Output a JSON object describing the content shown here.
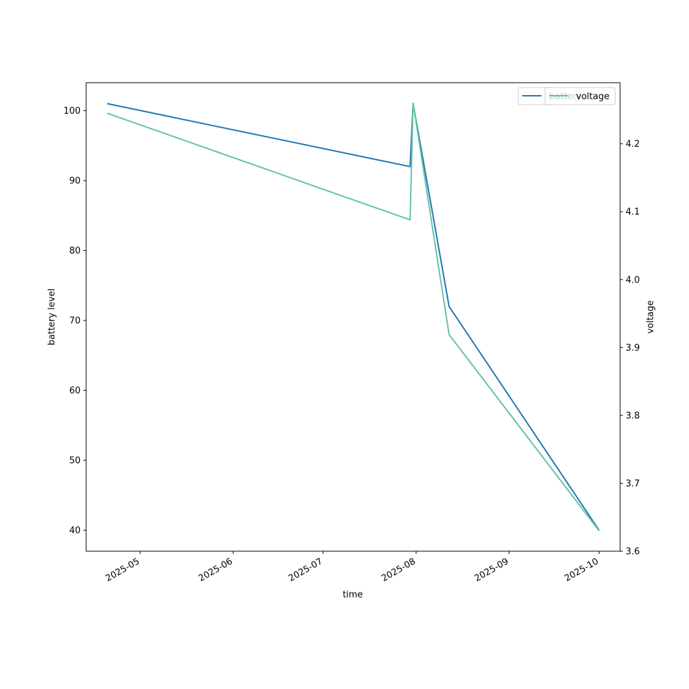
{
  "chart_data": {
    "type": "line",
    "title": "",
    "xlabel": "time",
    "ylabel": "battery level",
    "y2label": "voltage",
    "x_ticks": [
      "2025-05",
      "2025-06",
      "2025-07",
      "2025-08",
      "2025-09",
      "2025-10"
    ],
    "xlim": [
      "2025-04-13",
      "2025-10-08"
    ],
    "ylim": [
      37,
      104
    ],
    "y_ticks": [
      40,
      50,
      60,
      70,
      80,
      90,
      100
    ],
    "y2lim": [
      3.6,
      4.29
    ],
    "y2_ticks": [
      "3.6",
      "3.7",
      "3.8",
      "3.9",
      "4.0",
      "4.1",
      "4.2"
    ],
    "grid": false,
    "legend_position": "top-right",
    "series": [
      {
        "name": "battery",
        "axis": "left",
        "color": "#1f77b4",
        "points": [
          {
            "x": "2025-04-20",
            "y": 101
          },
          {
            "x": "2025-07-30",
            "y": 92
          },
          {
            "x": "2025-07-31",
            "y": 101
          },
          {
            "x": "2025-08-12",
            "y": 72
          },
          {
            "x": "2025-10-01",
            "y": 40
          }
        ]
      },
      {
        "name": "voltage",
        "axis": "right",
        "color": "#66c2a5",
        "points": [
          {
            "x": "2025-04-20",
            "y": 4.245
          },
          {
            "x": "2025-07-30",
            "y": 4.088
          },
          {
            "x": "2025-07-31",
            "y": 4.26
          },
          {
            "x": "2025-08-12",
            "y": 3.919
          },
          {
            "x": "2025-10-01",
            "y": 3.63
          }
        ]
      }
    ]
  }
}
